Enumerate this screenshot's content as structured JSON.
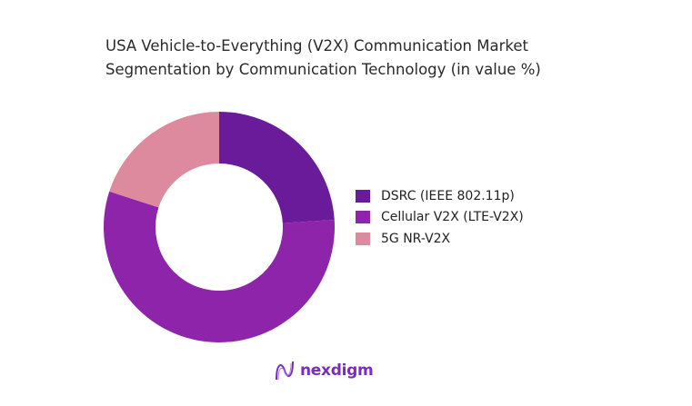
{
  "chart_data": {
    "type": "pie",
    "donut": true,
    "title": "USA Vehicle-to-Everything (V2X) Communication Market Segmentation by Communication Technology (in value %)",
    "categories": [
      "DSRC (IEEE 802.11p)",
      "Cellular V2X (LTE-V2X)",
      "5G NR-V2X"
    ],
    "values": [
      24,
      56,
      20
    ],
    "colors": [
      "#6a1b9a",
      "#8e24aa",
      "#de8a9e"
    ],
    "legend_position": "right"
  },
  "branding": {
    "logo_text": "nexdigm"
  }
}
